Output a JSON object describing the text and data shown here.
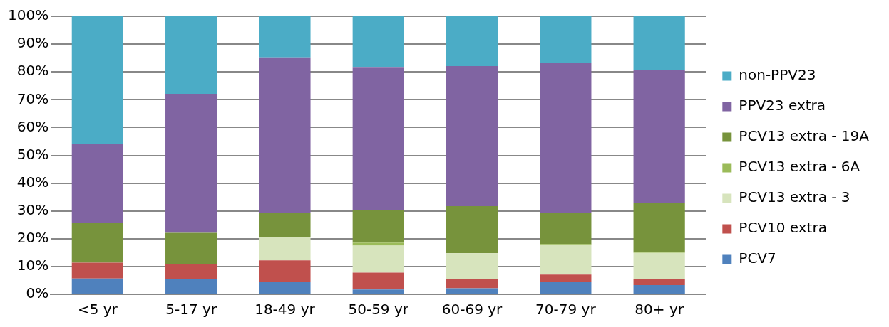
{
  "chart_data": {
    "type": "bar",
    "stacked": true,
    "categories": [
      "<5 yr",
      "5-17 yr",
      "18-49 yr",
      "50-59 yr",
      "60-69 yr",
      "70-79 yr",
      "80+ yr"
    ],
    "series": [
      {
        "name": "PCV7",
        "color": "#4f81bd",
        "values": [
          5.7,
          5.4,
          4.5,
          1.7,
          2.2,
          4.5,
          3.3
        ]
      },
      {
        "name": "PCV10 extra",
        "color": "#c0504d",
        "values": [
          5.7,
          5.6,
          7.7,
          6.1,
          3.3,
          2.6,
          2.2
        ]
      },
      {
        "name": "PCV13 extra - 3",
        "color": "#d7e4bd",
        "values": [
          0,
          0,
          8.4,
          9.7,
          9.3,
          10.6,
          9.4
        ]
      },
      {
        "name": "PCV13 extra - 6A",
        "color": "#9bbb59",
        "values": [
          0,
          0,
          0,
          1.1,
          0,
          0.4,
          0.4
        ]
      },
      {
        "name": "PCV13 extra - 19A",
        "color": "#77933c",
        "values": [
          14.2,
          11.1,
          8.6,
          11.8,
          16.9,
          11.1,
          17.5
        ]
      },
      {
        "name": "PPV23 extra",
        "color": "#8064a2",
        "values": [
          28.6,
          50.0,
          56.0,
          51.4,
          50.4,
          54.0,
          47.9
        ]
      },
      {
        "name": "non-PPV23",
        "color": "#4bacc6",
        "values": [
          45.8,
          27.9,
          14.8,
          18.2,
          17.9,
          16.8,
          19.3
        ]
      }
    ],
    "ylim": [
      0,
      100
    ],
    "yticks": [
      {
        "value": 0,
        "label": "0%"
      },
      {
        "value": 10,
        "label": "10%"
      },
      {
        "value": 20,
        "label": "20%"
      },
      {
        "value": 30,
        "label": "30%"
      },
      {
        "value": 40,
        "label": "40%"
      },
      {
        "value": 50,
        "label": "50%"
      },
      {
        "value": 60,
        "label": "60%"
      },
      {
        "value": 70,
        "label": "70%"
      },
      {
        "value": 80,
        "label": "80%"
      },
      {
        "value": 90,
        "label": "90%"
      },
      {
        "value": 100,
        "label": "100%"
      }
    ],
    "grid": "y",
    "legend": "right"
  }
}
